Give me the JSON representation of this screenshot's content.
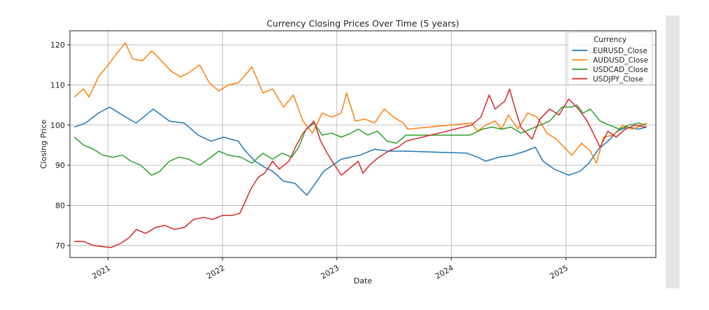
{
  "chart_data": {
    "type": "line",
    "title": "Currency Closing Prices Over Time (5 years)",
    "xlabel": "Date",
    "ylabel": "Closing Price",
    "xlim": [
      "2020-09-01",
      "2025-10-15"
    ],
    "ylim": [
      67,
      123.5
    ],
    "x_ticks": [
      "2021",
      "2022",
      "2023",
      "2024",
      "2025"
    ],
    "y_ticks": [
      70,
      80,
      90,
      100,
      110,
      120
    ],
    "grid": true,
    "legend": {
      "title": "Currency",
      "placement": "top-right"
    },
    "series": [
      {
        "name": "EURUSD_Close",
        "color": "#1f77b4",
        "points": [
          [
            "2020-09-15",
            99.5
          ],
          [
            "2020-10-20",
            100.5
          ],
          [
            "2020-12-01",
            103
          ],
          [
            "2021-01-06",
            104.5
          ],
          [
            "2021-02-15",
            102.5
          ],
          [
            "2021-03-31",
            100.5
          ],
          [
            "2021-05-25",
            104
          ],
          [
            "2021-07-15",
            101
          ],
          [
            "2021-09-01",
            100.5
          ],
          [
            "2021-10-15",
            97.5
          ],
          [
            "2021-11-25",
            96
          ],
          [
            "2022-01-05",
            97
          ],
          [
            "2022-02-20",
            96
          ],
          [
            "2022-03-15",
            93.5
          ],
          [
            "2022-04-15",
            91
          ],
          [
            "2022-05-15",
            89.5
          ],
          [
            "2022-06-10",
            88.5
          ],
          [
            "2022-07-15",
            86
          ],
          [
            "2022-08-20",
            85.5
          ],
          [
            "2022-09-27",
            82.5
          ],
          [
            "2022-10-20",
            85
          ],
          [
            "2022-11-20",
            88.5
          ],
          [
            "2023-01-15",
            91.5
          ],
          [
            "2023-03-15",
            92.5
          ],
          [
            "2023-05-01",
            94
          ],
          [
            "2023-06-15",
            93.5
          ],
          [
            "2023-08-10",
            93.5
          ],
          [
            "2024-02-20",
            93
          ],
          [
            "2024-03-25",
            92
          ],
          [
            "2024-04-20",
            91
          ],
          [
            "2024-06-01",
            92
          ],
          [
            "2024-07-15",
            92.5
          ],
          [
            "2024-08-25",
            93.5
          ],
          [
            "2024-09-25",
            94.5
          ],
          [
            "2024-10-20",
            91
          ],
          [
            "2024-11-25",
            89
          ],
          [
            "2025-01-10",
            87.5
          ],
          [
            "2025-02-15",
            88.5
          ],
          [
            "2025-03-15",
            90.5
          ],
          [
            "2025-04-15",
            94
          ],
          [
            "2025-05-15",
            96
          ],
          [
            "2025-06-15",
            98.5
          ],
          [
            "2025-07-15",
            99.5
          ],
          [
            "2025-08-20",
            99
          ],
          [
            "2025-09-15",
            99.5
          ]
        ]
      },
      {
        "name": "AUDUSD_Close",
        "color": "#ff7f0e",
        "points": [
          [
            "2020-09-15",
            107
          ],
          [
            "2020-10-15",
            109
          ],
          [
            "2020-11-01",
            107
          ],
          [
            "2020-12-01",
            112
          ],
          [
            "2021-01-01",
            115
          ],
          [
            "2021-01-25",
            117.5
          ],
          [
            "2021-02-25",
            120.5
          ],
          [
            "2021-03-20",
            116.5
          ],
          [
            "2021-04-20",
            116
          ],
          [
            "2021-05-20",
            118.5
          ],
          [
            "2021-06-20",
            116
          ],
          [
            "2021-07-20",
            113.5
          ],
          [
            "2021-08-20",
            112
          ],
          [
            "2021-09-15",
            113
          ],
          [
            "2021-10-20",
            115
          ],
          [
            "2021-11-20",
            110.5
          ],
          [
            "2021-12-20",
            108.5
          ],
          [
            "2022-01-20",
            110
          ],
          [
            "2022-02-20",
            110.5
          ],
          [
            "2022-03-15",
            112.5
          ],
          [
            "2022-04-05",
            114.5
          ],
          [
            "2022-05-10",
            108
          ],
          [
            "2022-06-10",
            109
          ],
          [
            "2022-07-15",
            104.5
          ],
          [
            "2022-08-15",
            107.5
          ],
          [
            "2022-09-15",
            101
          ],
          [
            "2022-10-15",
            98
          ],
          [
            "2022-11-15",
            103
          ],
          [
            "2022-12-15",
            102
          ],
          [
            "2023-01-15",
            103
          ],
          [
            "2023-02-01",
            108
          ],
          [
            "2023-03-01",
            101
          ],
          [
            "2023-04-01",
            101.5
          ],
          [
            "2023-05-01",
            100.5
          ],
          [
            "2023-06-01",
            104
          ],
          [
            "2023-07-01",
            102
          ],
          [
            "2023-08-01",
            100.5
          ],
          [
            "2023-08-15",
            99
          ],
          [
            "2024-03-05",
            100.5
          ],
          [
            "2024-03-25",
            98.5
          ],
          [
            "2024-04-20",
            100
          ],
          [
            "2024-05-20",
            101
          ],
          [
            "2024-06-10",
            99
          ],
          [
            "2024-07-01",
            102.5
          ],
          [
            "2024-08-01",
            99
          ],
          [
            "2024-09-01",
            103
          ],
          [
            "2024-10-01",
            102
          ],
          [
            "2024-11-01",
            98
          ],
          [
            "2024-12-01",
            96.5
          ],
          [
            "2025-01-01",
            94
          ],
          [
            "2025-01-20",
            92.5
          ],
          [
            "2025-02-20",
            95.5
          ],
          [
            "2025-03-20",
            93.5
          ],
          [
            "2025-04-08",
            90.5
          ],
          [
            "2025-05-01",
            97
          ],
          [
            "2025-06-01",
            97.5
          ],
          [
            "2025-07-01",
            100
          ],
          [
            "2025-08-01",
            99
          ],
          [
            "2025-09-15",
            100.5
          ]
        ]
      },
      {
        "name": "USDCAD_Close",
        "color": "#2ca02c",
        "points": [
          [
            "2020-09-15",
            97
          ],
          [
            "2020-10-15",
            95
          ],
          [
            "2020-11-15",
            94
          ],
          [
            "2020-12-15",
            92.5
          ],
          [
            "2021-01-15",
            92
          ],
          [
            "2021-02-15",
            92.5
          ],
          [
            "2021-03-15",
            91
          ],
          [
            "2021-04-15",
            90
          ],
          [
            "2021-05-20",
            87.5
          ],
          [
            "2021-06-15",
            88.5
          ],
          [
            "2021-07-15",
            91
          ],
          [
            "2021-08-15",
            92
          ],
          [
            "2021-09-15",
            91.5
          ],
          [
            "2021-10-20",
            90
          ],
          [
            "2021-11-25",
            92
          ],
          [
            "2021-12-20",
            93.5
          ],
          [
            "2022-01-20",
            92.5
          ],
          [
            "2022-03-01",
            92
          ],
          [
            "2022-04-05",
            90.5
          ],
          [
            "2022-05-10",
            93
          ],
          [
            "2022-06-10",
            91.5
          ],
          [
            "2022-07-10",
            93
          ],
          [
            "2022-08-10",
            92
          ],
          [
            "2022-09-01",
            94.5
          ],
          [
            "2022-09-25",
            99
          ],
          [
            "2022-10-20",
            100.5
          ],
          [
            "2022-11-15",
            97.5
          ],
          [
            "2022-12-15",
            98
          ],
          [
            "2023-01-15",
            97
          ],
          [
            "2023-02-15",
            98
          ],
          [
            "2023-03-10",
            99
          ],
          [
            "2023-04-10",
            97.5
          ],
          [
            "2023-05-10",
            98.5
          ],
          [
            "2023-06-10",
            96
          ],
          [
            "2023-07-10",
            95.5
          ],
          [
            "2023-08-10",
            97.5
          ],
          [
            "2024-03-01",
            97.5
          ],
          [
            "2024-04-10",
            99
          ],
          [
            "2024-05-10",
            99.5
          ],
          [
            "2024-06-10",
            99
          ],
          [
            "2024-07-10",
            99.5
          ],
          [
            "2024-08-10",
            98
          ],
          [
            "2024-09-10",
            99
          ],
          [
            "2024-10-10",
            100
          ],
          [
            "2024-11-10",
            101
          ],
          [
            "2024-12-20",
            104.5
          ],
          [
            "2025-01-20",
            104.5
          ],
          [
            "2025-02-05",
            105
          ],
          [
            "2025-02-25",
            103
          ],
          [
            "2025-03-20",
            104
          ],
          [
            "2025-04-20",
            101
          ],
          [
            "2025-05-20",
            100
          ],
          [
            "2025-06-20",
            99
          ],
          [
            "2025-07-20",
            100
          ],
          [
            "2025-08-20",
            100.5
          ],
          [
            "2025-09-15",
            100
          ]
        ]
      },
      {
        "name": "USDJPY_Close",
        "color": "#d62728",
        "points": [
          [
            "2020-09-15",
            71
          ],
          [
            "2020-10-15",
            71
          ],
          [
            "2020-11-15",
            70
          ],
          [
            "2020-12-15",
            69.7
          ],
          [
            "2021-01-10",
            69.5
          ],
          [
            "2021-02-10",
            70.5
          ],
          [
            "2021-03-10",
            72
          ],
          [
            "2021-04-01",
            74
          ],
          [
            "2021-05-01",
            73
          ],
          [
            "2021-06-01",
            74.5
          ],
          [
            "2021-07-01",
            75
          ],
          [
            "2021-08-01",
            74
          ],
          [
            "2021-09-01",
            74.5
          ],
          [
            "2021-10-01",
            76.5
          ],
          [
            "2021-11-01",
            77
          ],
          [
            "2021-12-01",
            76.5
          ],
          [
            "2022-01-01",
            77.5
          ],
          [
            "2022-02-01",
            77.5
          ],
          [
            "2022-02-25",
            78
          ],
          [
            "2022-03-15",
            81
          ],
          [
            "2022-04-01",
            84
          ],
          [
            "2022-04-25",
            87
          ],
          [
            "2022-05-15",
            88
          ],
          [
            "2022-06-10",
            91
          ],
          [
            "2022-07-01",
            89
          ],
          [
            "2022-08-01",
            91
          ],
          [
            "2022-08-25",
            95
          ],
          [
            "2022-09-15",
            98
          ],
          [
            "2022-10-20",
            101
          ],
          [
            "2022-11-10",
            96
          ],
          [
            "2022-12-01",
            93
          ],
          [
            "2022-12-25",
            90
          ],
          [
            "2023-01-15",
            87.5
          ],
          [
            "2023-02-15",
            89.5
          ],
          [
            "2023-03-10",
            91
          ],
          [
            "2023-03-25",
            88
          ],
          [
            "2023-04-15",
            90
          ],
          [
            "2023-05-15",
            92
          ],
          [
            "2023-06-15",
            93.5
          ],
          [
            "2023-07-15",
            94.5
          ],
          [
            "2023-08-10",
            96
          ],
          [
            "2024-03-05",
            100
          ],
          [
            "2024-04-05",
            102
          ],
          [
            "2024-05-01",
            107.5
          ],
          [
            "2024-05-20",
            104
          ],
          [
            "2024-06-20",
            106
          ],
          [
            "2024-07-05",
            109
          ],
          [
            "2024-07-25",
            103.5
          ],
          [
            "2024-08-10",
            99.5
          ],
          [
            "2024-09-15",
            96.5
          ],
          [
            "2024-10-10",
            101.5
          ],
          [
            "2024-11-10",
            104
          ],
          [
            "2024-12-10",
            102.5
          ],
          [
            "2025-01-10",
            106.5
          ],
          [
            "2025-02-10",
            104
          ],
          [
            "2025-03-10",
            101
          ],
          [
            "2025-04-20",
            94.5
          ],
          [
            "2025-05-15",
            98.5
          ],
          [
            "2025-06-10",
            97
          ],
          [
            "2025-07-10",
            99
          ],
          [
            "2025-08-10",
            100
          ],
          [
            "2025-09-15",
            99.5
          ]
        ]
      }
    ]
  }
}
